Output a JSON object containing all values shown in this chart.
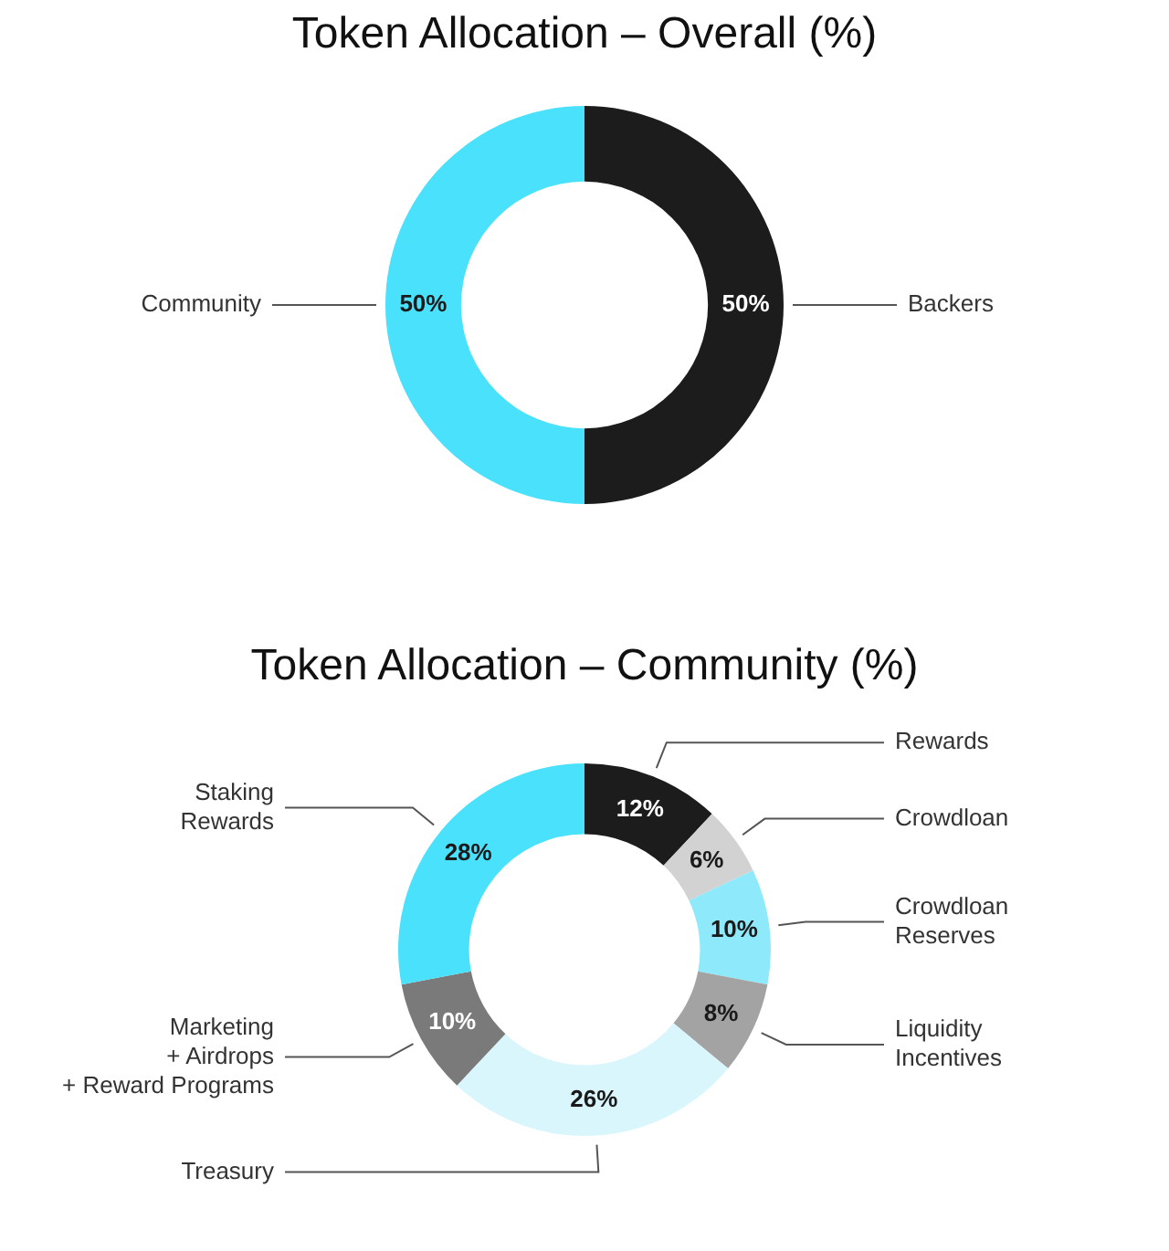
{
  "chart_data": [
    {
      "type": "donut",
      "title": "Token Allocation – Overall (%)",
      "categories": [
        "Backers",
        "Community"
      ],
      "values": [
        50,
        50
      ],
      "colors": [
        "#1c1c1c",
        "#4ae1fc"
      ],
      "value_labels": [
        "50%",
        "50%"
      ]
    },
    {
      "type": "donut",
      "title": "Token Allocation – Community (%)",
      "categories": [
        "Rewards",
        "Crowdloan",
        "Crowdloan\nReserves",
        "Liquidity\nIncentives",
        "Treasury",
        "Marketing\n+ Airdrops\n+ Reward Programs",
        "Staking\nRewards"
      ],
      "values": [
        12,
        6,
        10,
        8,
        26,
        10,
        28
      ],
      "colors": [
        "#1c1c1c",
        "#d2d2d2",
        "#8ee9fb",
        "#a3a3a3",
        "#d9f6fd",
        "#7a7a7a",
        "#4ae1fc"
      ],
      "value_labels": [
        "12%",
        "6%",
        "10%",
        "8%",
        "26%",
        "10%",
        "28%"
      ]
    }
  ]
}
